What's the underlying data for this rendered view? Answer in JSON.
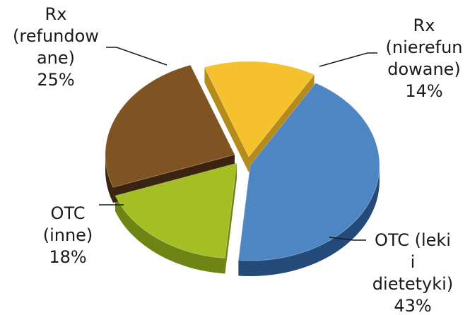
{
  "chart_data": {
    "type": "pie",
    "style": "3d-exploded",
    "legend": "none",
    "slices": [
      {
        "label_lines": [
          "Rx",
          "(nierefun",
          "dowane)"
        ],
        "percent_label": "14%",
        "value": 14,
        "color": "#F5C22E",
        "side": "#B58B1B"
      },
      {
        "label_lines": [
          "OTC (leki",
          "i",
          "dietetyki)"
        ],
        "percent_label": "43%",
        "value": 43,
        "color": "#4E86C3",
        "side": "#234A78"
      },
      {
        "label_lines": [
          "OTC",
          "(inne)"
        ],
        "percent_label": "18%",
        "value": 18,
        "color": "#A4BE23",
        "side": "#6E8413"
      },
      {
        "label_lines": [
          "Rx",
          "(refundow",
          "ane)"
        ],
        "percent_label": "25%",
        "value": 25,
        "color": "#7F5322",
        "side": "#3A240F"
      }
    ]
  }
}
